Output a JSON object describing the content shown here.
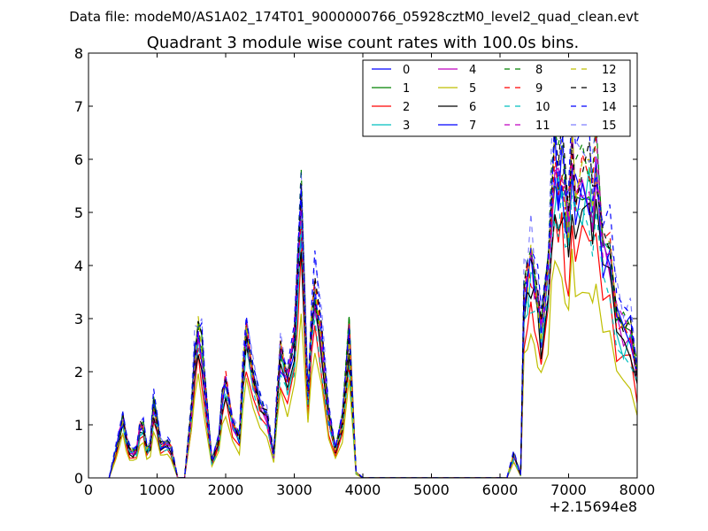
{
  "figure": {
    "suptitle": "Data file: modeM0/AS1A02_174T01_9000000766_05928cztM0_level2_quad_clean.evt",
    "offset_label": "+2.15694e8"
  },
  "chart_data": {
    "type": "line",
    "title": "Quadrant 3 module wise count rates with 100.0s bins.",
    "xlabel": "",
    "ylabel": "",
    "xlim": [
      0,
      8000
    ],
    "ylim": [
      0,
      8
    ],
    "x_offset": 215694000,
    "xticks": [
      "0",
      "1000",
      "2000",
      "3000",
      "4000",
      "5000",
      "6000",
      "7000",
      "8000"
    ],
    "yticks": [
      "0",
      "1",
      "2",
      "3",
      "4",
      "5",
      "6",
      "7",
      "8"
    ],
    "legend_location": "upper right",
    "x": [
      300,
      400,
      450,
      500,
      550,
      600,
      650,
      700,
      750,
      800,
      850,
      900,
      950,
      1000,
      1050,
      1100,
      1150,
      1200,
      1300,
      1400,
      1500,
      1550,
      1600,
      1650,
      1700,
      1800,
      1900,
      1950,
      2000,
      2100,
      2200,
      2250,
      2300,
      2400,
      2500,
      2600,
      2700,
      2750,
      2800,
      2900,
      3000,
      3050,
      3100,
      3200,
      3250,
      3300,
      3400,
      3500,
      3600,
      3700,
      3800,
      3900,
      4000,
      4100,
      5000,
      6000,
      6100,
      6200,
      6300,
      6350,
      6400,
      6450,
      6500,
      6550,
      6600,
      6700,
      6750,
      6800,
      6850,
      6900,
      6950,
      7000,
      7050,
      7100,
      7200,
      7300,
      7350,
      7400,
      7500,
      7600,
      7700,
      7800,
      7900,
      8000
    ],
    "base": [
      0,
      0.5,
      0.8,
      1.1,
      0.7,
      0.5,
      0.45,
      0.5,
      0.9,
      0.9,
      0.5,
      0.6,
      1.3,
      1.0,
      0.6,
      0.6,
      0.6,
      0.55,
      0,
      0,
      1.2,
      2.2,
      2.6,
      2.3,
      1.6,
      0.3,
      0.7,
      1.4,
      1.7,
      1.0,
      0.7,
      1.9,
      2.6,
      1.8,
      1.3,
      1.1,
      0.4,
      1.4,
      2.2,
      1.7,
      2.4,
      3.6,
      4.8,
      1.4,
      2.7,
      3.3,
      2.4,
      1.1,
      0.5,
      1.0,
      2.6,
      0.1,
      0,
      0,
      0,
      0,
      0,
      0.4,
      0.05,
      3.3,
      3.5,
      3.8,
      3.6,
      3.2,
      2.6,
      3.6,
      4.9,
      5.6,
      5.2,
      5.6,
      4.9,
      4.6,
      5.7,
      5.1,
      5.3,
      5.3,
      5.0,
      5.5,
      4.0,
      4.1,
      2.9,
      2.6,
      2.6,
      1.8
    ],
    "series": [
      {
        "name": "0",
        "color": "#0000ff",
        "dash": "solid",
        "scale": 1.05,
        "jitter": 0.06
      },
      {
        "name": "1",
        "color": "#008000",
        "dash": "solid",
        "scale": 1.08,
        "jitter": 0.05
      },
      {
        "name": "2",
        "color": "#ff0000",
        "dash": "solid",
        "scale": 0.82,
        "jitter": 0.05
      },
      {
        "name": "3",
        "color": "#00bfbf",
        "dash": "solid",
        "scale": 1.0,
        "jitter": 0.07
      },
      {
        "name": "4",
        "color": "#bf00bf",
        "dash": "solid",
        "scale": 1.03,
        "jitter": 0.06
      },
      {
        "name": "5",
        "color": "#bfbf00",
        "dash": "solid",
        "scale": 0.7,
        "jitter": 0.05
      },
      {
        "name": "6",
        "color": "#000000",
        "dash": "solid",
        "scale": 0.95,
        "jitter": 0.05
      },
      {
        "name": "7",
        "color": "#0000ff",
        "dash": "solid",
        "scale": 1.02,
        "jitter": 0.06
      },
      {
        "name": "8",
        "color": "#008000",
        "dash": "dashed",
        "scale": 1.12,
        "jitter": 0.05
      },
      {
        "name": "9",
        "color": "#ff0000",
        "dash": "dashed",
        "scale": 1.06,
        "jitter": 0.06
      },
      {
        "name": "10",
        "color": "#00bfbf",
        "dash": "dashed",
        "scale": 0.9,
        "jitter": 0.07
      },
      {
        "name": "11",
        "color": "#bf00bf",
        "dash": "dashed",
        "scale": 1.04,
        "jitter": 0.06
      },
      {
        "name": "12",
        "color": "#bfbf00",
        "dash": "dashed",
        "scale": 1.07,
        "jitter": 0.05
      },
      {
        "name": "13",
        "color": "#000000",
        "dash": "dashed",
        "scale": 1.1,
        "jitter": 0.05
      },
      {
        "name": "14",
        "color": "#0000ff",
        "dash": "dashed",
        "scale": 1.16,
        "jitter": 0.06
      },
      {
        "name": "15",
        "color": "#0000ff",
        "dash": "dashed",
        "scale": 1.2,
        "jitter": 0.05,
        "opacity": 0.5
      }
    ]
  }
}
